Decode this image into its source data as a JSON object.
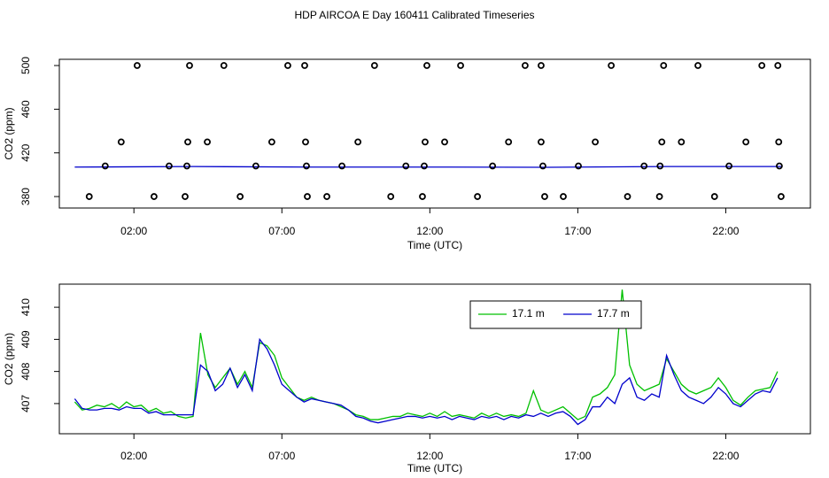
{
  "title": "HDP AIRCOA E  Day 160411  Calibrated Timeseries",
  "chart_data": [
    {
      "type": "line",
      "x_label": "Time (UTC)",
      "y_label": "CO2 (ppm)",
      "xlim": [
        -0.52,
        24.86
      ],
      "ylim": [
        369.5,
        505.7
      ],
      "xticks": [
        {
          "value": 2,
          "label": "02:00"
        },
        {
          "value": 7,
          "label": "07:00"
        },
        {
          "value": 12,
          "label": "12:00"
        },
        {
          "value": 17,
          "label": "17:00"
        },
        {
          "value": 22,
          "label": "22:00"
        }
      ],
      "yticks": [
        380,
        420,
        460,
        500
      ],
      "series": [
        {
          "type": "line",
          "color": "#0000cc",
          "x": [
            0,
            4,
            8,
            12,
            16,
            20,
            23.87
          ],
          "values": [
            407,
            407.5,
            407,
            407,
            406.8,
            407.5,
            407.5
          ]
        },
        {
          "type": "scatter",
          "color": "#000000",
          "x": [
            2.11,
            3.88,
            5.04,
            7.2,
            7.77,
            10.13,
            11.9,
            13.04,
            15.22,
            15.76,
            18.13,
            19.9,
            21.06,
            23.22,
            23.76,
            1.57,
            3.82,
            4.48,
            6.66,
            7.8,
            9.57,
            11.84,
            12.5,
            14.66,
            15.76,
            17.59,
            19.84,
            20.5,
            22.68,
            23.79,
            1.03,
            3.19,
            3.79,
            6.12,
            7.83,
            9.03,
            11.19,
            11.81,
            14.12,
            15.82,
            17.02,
            19.24,
            19.78,
            22.11,
            23.81,
            0.49,
            2.68,
            3.73,
            5.59,
            7.86,
            8.52,
            10.68,
            11.75,
            13.61,
            15.88,
            16.51,
            18.68,
            19.76,
            21.62,
            23.87
          ],
          "values": [
            500,
            500,
            500,
            500,
            500,
            500,
            500,
            500,
            500,
            500,
            500,
            500,
            500,
            500,
            500,
            430,
            430,
            430,
            430,
            430,
            430,
            430,
            430,
            430,
            430,
            430,
            430,
            430,
            430,
            430,
            408,
            408,
            408,
            408,
            408,
            408,
            408,
            408,
            408,
            408,
            408,
            408,
            408,
            408,
            408,
            380,
            380,
            380,
            380,
            380,
            380,
            380,
            380,
            380,
            380,
            380,
            380,
            380,
            380,
            380
          ]
        }
      ]
    },
    {
      "type": "line",
      "x_label": "Time (UTC)",
      "y_label": "CO2 (ppm)",
      "xlim": [
        -0.52,
        24.86
      ],
      "ylim": [
        406.06,
        410.72
      ],
      "xticks": [
        {
          "value": 2,
          "label": "02:00"
        },
        {
          "value": 7,
          "label": "07:00"
        },
        {
          "value": 12,
          "label": "12:00"
        },
        {
          "value": 17,
          "label": "17:00"
        },
        {
          "value": 22,
          "label": "22:00"
        }
      ],
      "yticks": [
        407,
        408,
        409,
        410
      ],
      "legend": "top",
      "x": [
        0,
        0.25,
        0.5,
        0.75,
        1,
        1.25,
        1.5,
        1.75,
        2,
        2.25,
        2.5,
        2.75,
        3,
        3.25,
        3.5,
        3.75,
        4,
        4.25,
        4.5,
        4.75,
        5,
        5.25,
        5.5,
        5.75,
        6,
        6.25,
        6.5,
        6.75,
        7,
        7.25,
        7.5,
        7.75,
        8,
        8.25,
        8.5,
        8.75,
        9,
        9.25,
        9.5,
        9.75,
        10,
        10.25,
        10.5,
        10.75,
        11,
        11.25,
        11.5,
        11.75,
        12,
        12.25,
        12.5,
        12.75,
        13,
        13.25,
        13.5,
        13.75,
        14,
        14.25,
        14.5,
        14.75,
        15,
        15.25,
        15.5,
        15.75,
        16,
        16.25,
        16.5,
        16.75,
        17,
        17.25,
        17.5,
        17.75,
        18,
        18.25,
        18.5,
        18.75,
        19,
        19.25,
        19.5,
        19.75,
        20,
        20.25,
        20.5,
        20.75,
        21,
        21.25,
        21.5,
        21.75,
        22,
        22.25,
        22.5,
        22.75,
        23,
        23.25,
        23.5,
        23.75
      ],
      "series": [
        {
          "name": "17.1 m",
          "type": "line",
          "color": "#00c000",
          "values": [
            407.05,
            406.8,
            406.85,
            406.95,
            406.9,
            407.0,
            406.85,
            407.05,
            406.9,
            406.95,
            406.75,
            406.85,
            406.7,
            406.75,
            406.6,
            406.55,
            406.6,
            409.2,
            407.9,
            407.5,
            407.8,
            408.1,
            407.6,
            408.0,
            407.5,
            408.9,
            408.8,
            408.5,
            407.8,
            407.5,
            407.2,
            407.1,
            407.2,
            407.1,
            407.05,
            407.0,
            406.9,
            406.8,
            406.65,
            406.6,
            406.5,
            406.5,
            406.55,
            406.6,
            406.6,
            406.7,
            406.65,
            406.6,
            406.7,
            406.6,
            406.75,
            406.6,
            406.65,
            406.6,
            406.55,
            406.7,
            406.6,
            406.7,
            406.6,
            406.65,
            406.6,
            406.7,
            407.4,
            406.8,
            406.7,
            406.8,
            406.9,
            406.7,
            406.5,
            406.6,
            407.2,
            407.3,
            407.5,
            407.9,
            410.55,
            408.2,
            407.6,
            407.4,
            407.5,
            407.6,
            408.4,
            408.0,
            407.6,
            407.4,
            407.3,
            407.4,
            407.5,
            407.8,
            407.5,
            407.1,
            406.95,
            407.2,
            407.4,
            407.45,
            407.5,
            408.0
          ]
        },
        {
          "name": "17.7 m",
          "type": "line",
          "color": "#0000cc",
          "values": [
            407.15,
            406.85,
            406.8,
            406.8,
            406.85,
            406.85,
            406.8,
            406.9,
            406.85,
            406.85,
            406.7,
            406.75,
            406.65,
            406.65,
            406.65,
            406.65,
            406.65,
            408.2,
            408.0,
            407.4,
            407.6,
            408.1,
            407.5,
            407.9,
            407.4,
            409.0,
            408.7,
            408.2,
            407.6,
            407.4,
            407.2,
            407.05,
            407.15,
            407.1,
            407.05,
            407.0,
            406.95,
            406.8,
            406.6,
            406.55,
            406.45,
            406.4,
            406.45,
            406.5,
            406.55,
            406.6,
            406.6,
            406.55,
            406.6,
            406.55,
            406.6,
            406.5,
            406.6,
            406.55,
            406.5,
            406.6,
            406.55,
            406.6,
            406.5,
            406.6,
            406.55,
            406.65,
            406.6,
            406.7,
            406.6,
            406.7,
            406.75,
            406.6,
            406.35,
            406.5,
            406.9,
            406.9,
            407.2,
            407.0,
            407.6,
            407.8,
            407.2,
            407.1,
            407.3,
            407.2,
            408.5,
            407.9,
            407.4,
            407.2,
            407.1,
            407.0,
            407.2,
            407.5,
            407.3,
            407.0,
            406.9,
            407.1,
            407.3,
            407.4,
            407.35,
            407.8
          ]
        }
      ]
    }
  ]
}
